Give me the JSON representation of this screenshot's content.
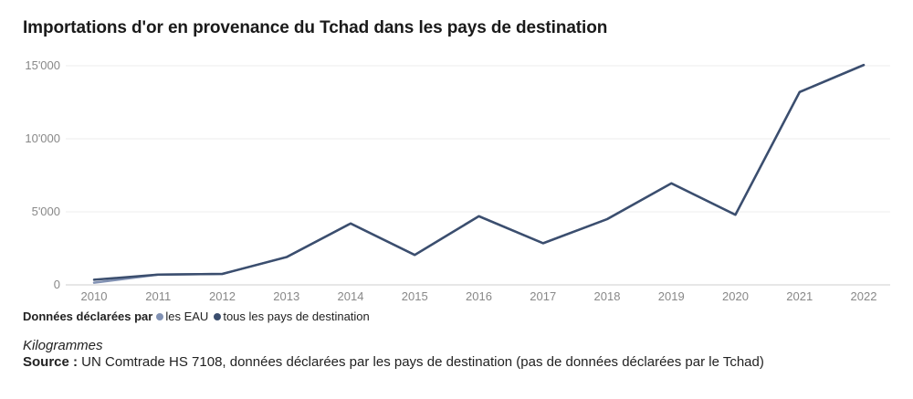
{
  "chart_data": {
    "type": "line",
    "title": "Importations d'or en provenance du Tchad dans les pays de destination",
    "x": [
      "2010",
      "2011",
      "2012",
      "2013",
      "2014",
      "2015",
      "2016",
      "2017",
      "2018",
      "2019",
      "2020",
      "2021",
      "2022"
    ],
    "yticks": [
      "0",
      "5'000",
      "10'000",
      "15'000"
    ],
    "ytick_values": [
      0,
      5000,
      10000,
      15000
    ],
    "ylim": [
      0,
      15000
    ],
    "grid": true,
    "series": [
      {
        "name": "les EAU",
        "color": "#8191b3",
        "values": [
          150,
          700,
          750,
          1900,
          4200,
          2050,
          4700,
          2850,
          4500,
          6950,
          4800,
          13200,
          15050
        ]
      },
      {
        "name": "tous les pays de destination",
        "color": "#3b4e6e",
        "values": [
          350,
          700,
          750,
          1900,
          4200,
          2050,
          4700,
          2850,
          4500,
          6950,
          4800,
          13200,
          15050
        ]
      }
    ],
    "legend": {
      "title": "Données déclarées par",
      "placement": "bottom-left"
    }
  },
  "footer": {
    "unit": "Kilogrammes",
    "source_label": "Source :",
    "source_text": " UN Comtrade HS 7108, données déclarées par les pays de destination (pas de données déclarées par le Tchad)"
  }
}
